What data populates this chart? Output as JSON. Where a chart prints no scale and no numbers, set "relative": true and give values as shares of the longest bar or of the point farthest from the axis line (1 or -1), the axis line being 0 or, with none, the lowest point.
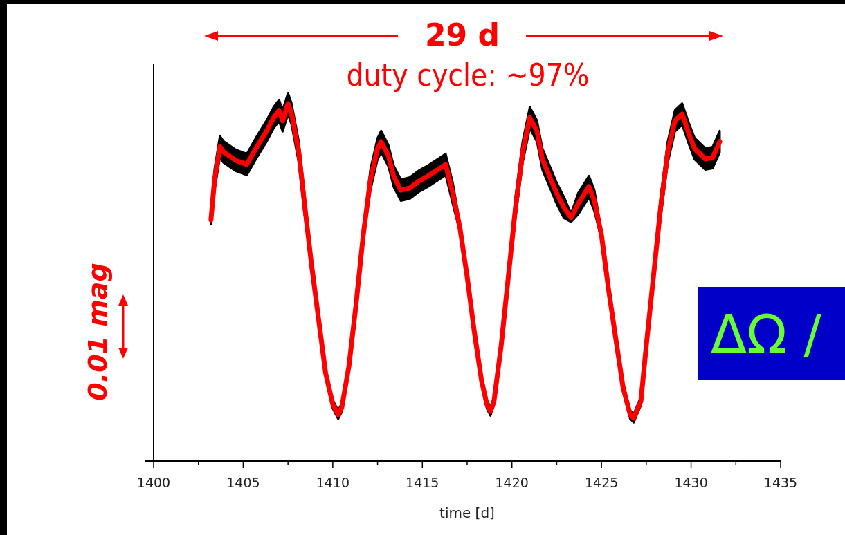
{
  "chart_data": {
    "type": "line",
    "relative": true,
    "xlabel": "time [d]",
    "xlim": [
      1400,
      1435
    ],
    "xticks": [
      1400,
      {
        "value": 1402.5,
        "label": null
      },
      1405,
      {
        "value": 1407.5,
        "label": null
      },
      1410,
      {
        "value": 1412.5,
        "label": null
      },
      1415,
      {
        "value": 1417.5,
        "label": null
      },
      1420,
      {
        "value": 1422.5,
        "label": null
      },
      1425,
      {
        "value": 1427.5,
        "label": null
      },
      1430,
      {
        "value": 1432.5,
        "label": null
      },
      1435
    ],
    "annotations": [
      "29 d",
      "duty cycle: ~97%",
      "0.01 mag",
      "ΔΩ /"
    ],
    "line_style": "solid",
    "series": [
      {
        "color": "#ff0000",
        "x": [
          1403.2,
          1403.4,
          1403.7,
          1403.9,
          1404.6,
          1405.2,
          1405.7,
          1406.3,
          1406.7,
          1407.0,
          1407.2,
          1407.5,
          1407.7,
          1408.1,
          1408.4,
          1408.8,
          1409.2,
          1409.6,
          1410.0,
          1410.3,
          1410.5,
          1410.9,
          1411.3,
          1411.7,
          1412.1,
          1412.5,
          1412.7,
          1413.1,
          1413.4,
          1413.8,
          1414.3,
          1414.8,
          1415.3,
          1415.7,
          1416.3,
          1416.7,
          1417.1,
          1417.5,
          1417.9,
          1418.3,
          1418.6,
          1418.8,
          1419.0,
          1419.4,
          1419.8,
          1420.2,
          1420.6,
          1421.0,
          1421.4,
          1421.7,
          1422.1,
          1422.5,
          1422.9,
          1423.3,
          1423.7,
          1424.3,
          1424.6,
          1425.0,
          1425.4,
          1425.8,
          1426.2,
          1426.6,
          1426.8,
          1427.2,
          1427.5,
          1427.9,
          1428.3,
          1428.7,
          1429.1,
          1429.5,
          1429.9,
          1430.2,
          1430.8,
          1431.2,
          1431.6
        ],
        "values": [
          0.675,
          0.787,
          0.88,
          0.865,
          0.841,
          0.83,
          0.874,
          0.923,
          0.961,
          0.981,
          0.952,
          1.0,
          0.971,
          0.865,
          0.729,
          0.555,
          0.4,
          0.246,
          0.159,
          0.13,
          0.149,
          0.265,
          0.439,
          0.632,
          0.787,
          0.874,
          0.894,
          0.855,
          0.797,
          0.758,
          0.764,
          0.783,
          0.797,
          0.81,
          0.83,
          0.749,
          0.652,
          0.516,
          0.362,
          0.226,
          0.159,
          0.139,
          0.168,
          0.323,
          0.516,
          0.71,
          0.865,
          0.961,
          0.923,
          0.845,
          0.797,
          0.749,
          0.71,
          0.681,
          0.72,
          0.768,
          0.729,
          0.632,
          0.478,
          0.342,
          0.207,
          0.13,
          0.12,
          0.168,
          0.323,
          0.516,
          0.71,
          0.865,
          0.952,
          0.971,
          0.913,
          0.874,
          0.845,
          0.849,
          0.894
        ],
        "lower": [
          0.663,
          0.757,
          0.85,
          0.835,
          0.811,
          0.8,
          0.844,
          0.893,
          0.931,
          0.951,
          0.922,
          0.97,
          0.941,
          0.835,
          0.699,
          0.543,
          0.388,
          0.234,
          0.147,
          0.118,
          0.137,
          0.253,
          0.427,
          0.62,
          0.757,
          0.844,
          0.864,
          0.825,
          0.767,
          0.728,
          0.734,
          0.753,
          0.767,
          0.78,
          0.8,
          0.719,
          0.64,
          0.504,
          0.35,
          0.214,
          0.147,
          0.127,
          0.156,
          0.311,
          0.504,
          0.68,
          0.835,
          0.931,
          0.893,
          0.815,
          0.767,
          0.719,
          0.68,
          0.669,
          0.69,
          0.738,
          0.699,
          0.62,
          0.466,
          0.33,
          0.195,
          0.118,
          0.108,
          0.156,
          0.311,
          0.504,
          0.68,
          0.835,
          0.922,
          0.941,
          0.883,
          0.844,
          0.815,
          0.819,
          0.864
        ],
        "upper": [
          0.687,
          0.817,
          0.91,
          0.895,
          0.871,
          0.86,
          0.904,
          0.953,
          0.991,
          1.011,
          0.982,
          1.03,
          1.001,
          0.895,
          0.759,
          0.567,
          0.412,
          0.258,
          0.171,
          0.142,
          0.161,
          0.277,
          0.451,
          0.644,
          0.817,
          0.904,
          0.924,
          0.885,
          0.827,
          0.788,
          0.794,
          0.813,
          0.827,
          0.84,
          0.86,
          0.779,
          0.664,
          0.528,
          0.374,
          0.238,
          0.171,
          0.151,
          0.18,
          0.335,
          0.528,
          0.74,
          0.895,
          0.991,
          0.953,
          0.875,
          0.827,
          0.779,
          0.74,
          0.693,
          0.75,
          0.798,
          0.759,
          0.644,
          0.49,
          0.354,
          0.219,
          0.142,
          0.132,
          0.18,
          0.335,
          0.528,
          0.74,
          0.895,
          0.982,
          1.001,
          0.943,
          0.904,
          0.875,
          0.879,
          0.924
        ]
      }
    ]
  }
}
